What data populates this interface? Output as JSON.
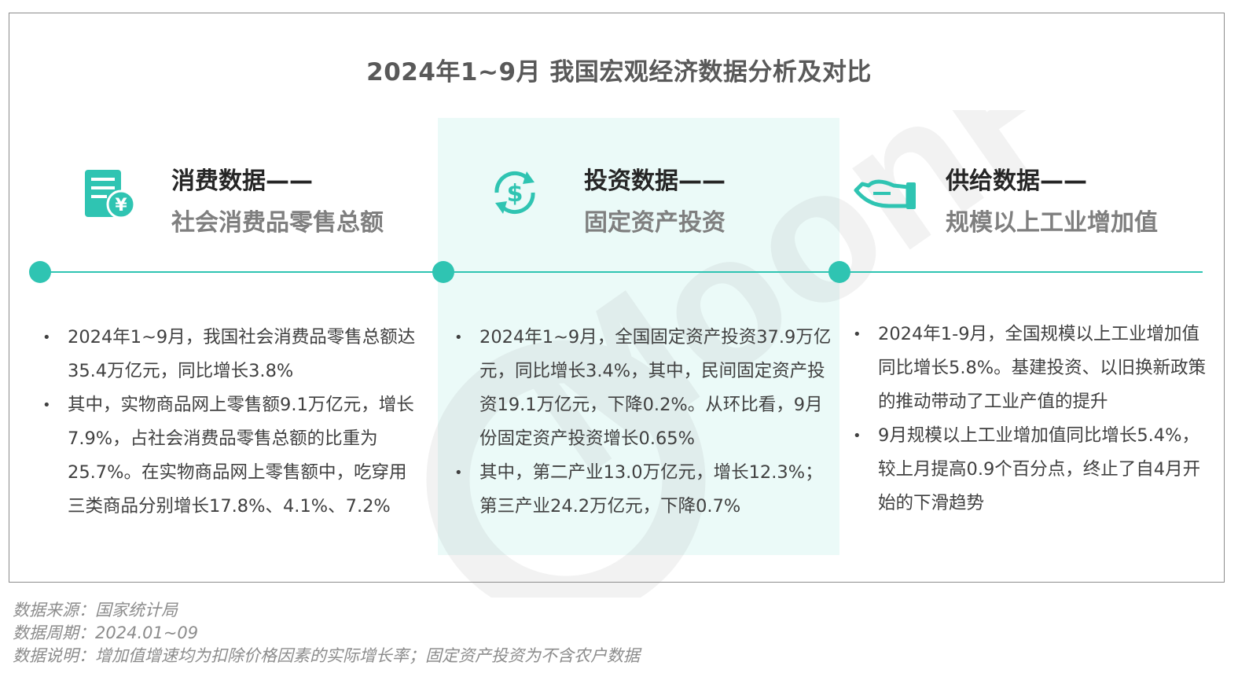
{
  "title": "2024年1~9月 我国宏观经济数据分析及对比",
  "watermark": "MoonFox",
  "columns": [
    {
      "icon": "receipt-yuan-icon",
      "title": "消费数据——",
      "subtitle": "社会消费品零售总额",
      "bullets": [
        "2024年1~9月，我国社会消费品零售总额达35.4万亿元，同比增长3.8%",
        "其中，实物商品网上零售额9.1万亿元，增长7.9%，占社会消费品零售总额的比重为25.7%。在实物商品网上零售额中，吃穿用三类商品分别增长17.8%、4.1%、7.2%"
      ]
    },
    {
      "icon": "dollar-cycle-icon",
      "title": "投资数据——",
      "subtitle": "固定资产投资",
      "bullets": [
        "2024年1~9月，全国固定资产投资37.9万亿元，同比增长3.4%，其中，民间固定资产投资19.1万亿元，下降0.2%。从环比看，9月份固定资产投资增长0.65%",
        "其中，第二产业13.0万亿元，增长12.3%；第三产业24.2万亿元，下降0.7%"
      ]
    },
    {
      "icon": "hand-supply-icon",
      "title": "供给数据——",
      "subtitle": "规模以上工业增加值",
      "bullets": [
        "2024年1-9月，全国规模以上工业增加值同比增长5.8%。基建投资、以旧换新政策的推动带动了工业产值的提升",
        "9月规模以上工业增加值同比增长5.4%，较上月提高0.9个百分点，终止了自4月开始的下滑趋势"
      ]
    }
  ],
  "footer": {
    "source": "数据来源：国家统计局",
    "period": "数据周期：2024.01~09",
    "note": "数据说明：增加值增速均为扣除价格因素的实际增长率；固定资产投资为不含农户数据"
  },
  "colors": {
    "accent": "#2fc4b2",
    "highlight_bg": "#ebfaf8",
    "title": "#595959",
    "subtitle": "#7f7f7f",
    "footer": "#8c8c8c"
  }
}
